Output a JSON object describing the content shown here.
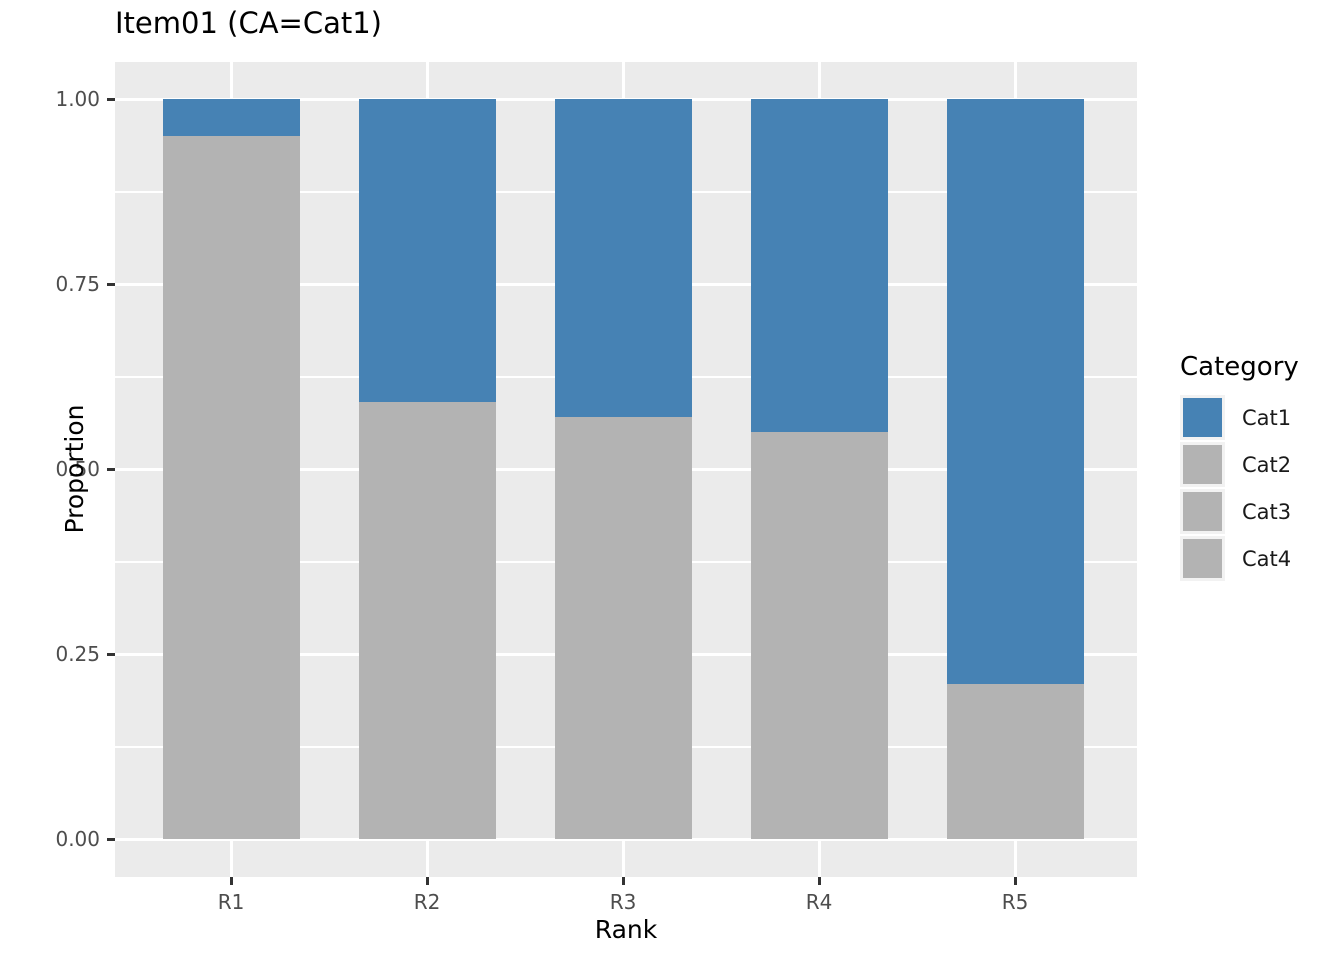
{
  "title": "Item01 (CA=Cat1)",
  "axes": {
    "x": {
      "label": "Rank",
      "ticks": [
        "R1",
        "R2",
        "R3",
        "R4",
        "R5"
      ]
    },
    "y": {
      "label": "Proportion",
      "ticks": [
        "0.00",
        "0.25",
        "0.50",
        "0.75",
        "1.00"
      ]
    }
  },
  "legend": {
    "title": "Category",
    "items": [
      {
        "label": "Cat1",
        "color": "#4682B4"
      },
      {
        "label": "Cat2",
        "color": "#B3B3B3"
      },
      {
        "label": "Cat3",
        "color": "#B3B3B3"
      },
      {
        "label": "Cat4",
        "color": "#B3B3B3"
      }
    ]
  },
  "chart_data": {
    "type": "bar",
    "stacked": true,
    "title": "Item01 (CA=Cat1)",
    "xlabel": "Rank",
    "ylabel": "Proportion",
    "categories": [
      "R1",
      "R2",
      "R3",
      "R4",
      "R5"
    ],
    "series": [
      {
        "name": "Cat2/Cat3/Cat4 (gray, segments indistinguishable)",
        "color": "#B3B3B3",
        "values": [
          0.95,
          0.59,
          0.57,
          0.55,
          0.21
        ]
      },
      {
        "name": "Cat1",
        "color": "#4682B4",
        "values": [
          0.05,
          0.41,
          0.43,
          0.45,
          0.79
        ]
      }
    ],
    "ylim": [
      0,
      1
    ],
    "y_major_ticks": [
      0.0,
      0.25,
      0.5,
      0.75,
      1.0
    ],
    "y_minor_ticks": [
      0.125,
      0.375,
      0.625,
      0.875
    ],
    "grid": true,
    "legend_position": "right",
    "panel_background": "#EBEBEB",
    "grid_color": "#FFFFFF"
  },
  "colors": {
    "cat1_blue": "#4682B4",
    "gray_bar": "#B3B3B3",
    "panel_bg": "#EBEBEB",
    "legend_key_bg": "#F2F2F2",
    "tick_mark": "#333333",
    "tick_label": "#4D4D4D"
  }
}
